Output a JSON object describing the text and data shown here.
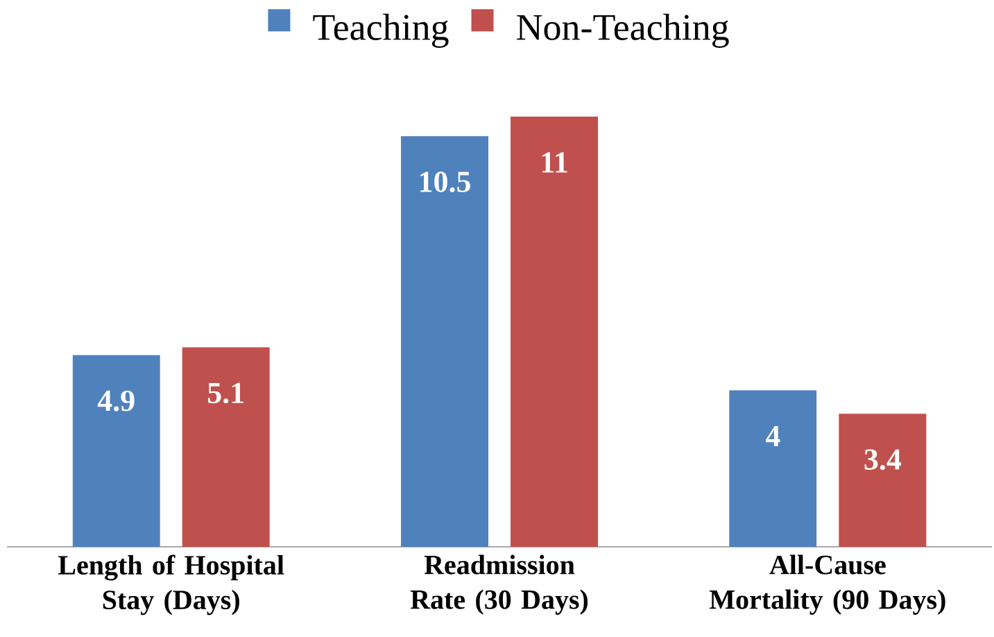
{
  "chart_data": {
    "type": "bar",
    "categories": [
      "Length of Hospital Stay (Days)",
      "Readmission Rate (30 Days)",
      "All-Cause Mortality (90 Days)"
    ],
    "series": [
      {
        "name": "Teaching",
        "color": "#4f81bd",
        "values": [
          4.9,
          10.5,
          4
        ]
      },
      {
        "name": "Non-Teaching",
        "color": "#c0504d",
        "values": [
          5.1,
          11,
          3.4
        ]
      }
    ],
    "data_labels": true,
    "legend": "top"
  }
}
